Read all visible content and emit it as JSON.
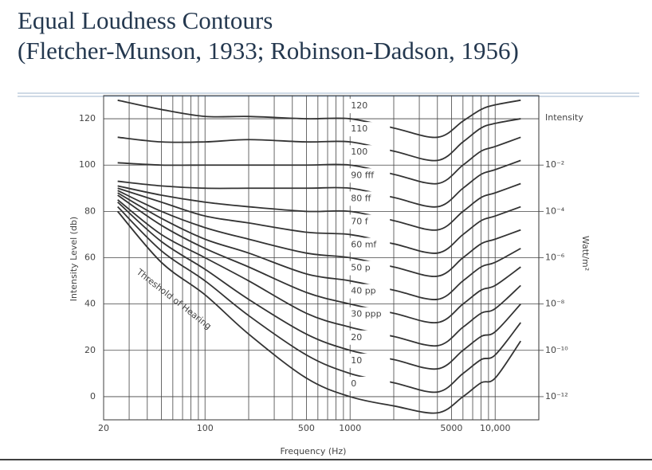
{
  "header": {
    "title_line1": "Equal Loudness Contours",
    "title_line2": "(Fletcher-Munson, 1933; Robinson-Dadson, 1956)"
  },
  "chart_data": {
    "type": "line",
    "x_label": "Frequency (Hz)",
    "y_label": "Intensity Level (db)",
    "y2_title": "Intensity",
    "y2_label": "Watt/m²",
    "annotation": "Threshold of Hearing",
    "x": [
      25,
      50,
      100,
      200,
      500,
      1000,
      2000,
      4000,
      6000,
      8000,
      10000,
      15000
    ],
    "xlim": [
      20,
      20000
    ],
    "xscale": "log",
    "xticks": [
      20,
      100,
      500,
      1000,
      5000,
      {
        "value": 10000,
        "label": "10,000"
      }
    ],
    "xminor": [
      30,
      40,
      50,
      60,
      70,
      80,
      90,
      200,
      300,
      400,
      600,
      700,
      800,
      900,
      2000,
      3000,
      4000,
      6000,
      7000,
      8000,
      9000
    ],
    "ylim": [
      -10,
      130
    ],
    "yticks": [
      0,
      20,
      40,
      60,
      80,
      100,
      120
    ],
    "grid": true,
    "y2lim": [
      1e-13,
      10
    ],
    "y2scale": "log",
    "y2ticks": [
      {
        "value": 0.01,
        "label": "10⁻²"
      },
      {
        "value": 0.0001,
        "label": "10⁻⁴"
      },
      {
        "value": 1e-06,
        "label": "10⁻⁶"
      },
      {
        "value": 1e-08,
        "label": "10⁻⁸"
      },
      {
        "value": 1e-10,
        "label": "10⁻¹⁰"
      },
      {
        "value": 1e-12,
        "label": "10⁻¹²"
      }
    ],
    "series": [
      {
        "name": "120",
        "color": "#333333",
        "values": [
          128,
          124,
          121,
          121,
          120,
          120,
          116,
          112,
          119,
          124,
          126,
          128
        ]
      },
      {
        "name": "110",
        "color": "#333333",
        "values": [
          112,
          110,
          110,
          111,
          110,
          110,
          106,
          102,
          110,
          116,
          118,
          120
        ]
      },
      {
        "name": "100",
        "color": "#333333",
        "values": [
          101,
          100,
          100,
          100,
          100,
          100,
          96,
          92,
          100,
          106,
          108,
          112
        ]
      },
      {
        "name": "90 fff",
        "color": "#333333",
        "values": [
          93,
          91,
          90,
          90,
          90,
          90,
          86,
          82,
          90,
          96,
          98,
          102
        ]
      },
      {
        "name": "80 ff",
        "color": "#333333",
        "values": [
          91,
          87,
          84,
          82,
          80,
          80,
          76,
          72,
          80,
          86,
          88,
          92
        ]
      },
      {
        "name": "70 f",
        "color": "#333333",
        "values": [
          90,
          84,
          78,
          75,
          71,
          70,
          66,
          62,
          70,
          76,
          78,
          82
        ]
      },
      {
        "name": "60 mf",
        "color": "#333333",
        "values": [
          89,
          80,
          73,
          68,
          62,
          60,
          56,
          52,
          60,
          66,
          68,
          72
        ]
      },
      {
        "name": "50 p",
        "color": "#333333",
        "values": [
          88,
          77,
          68,
          62,
          53,
          50,
          46,
          42,
          50,
          56,
          58,
          64
        ]
      },
      {
        "name": "40 pp",
        "color": "#333333",
        "values": [
          87,
          74,
          64,
          56,
          45,
          40,
          36,
          32,
          40,
          46,
          48,
          56
        ]
      },
      {
        "name": "30 ppp",
        "color": "#333333",
        "values": [
          85,
          70,
          60,
          50,
          36,
          30,
          26,
          22,
          30,
          36,
          38,
          48
        ]
      },
      {
        "name": "20",
        "color": "#333333",
        "values": [
          84,
          67,
          55,
          42,
          27,
          20,
          16,
          12,
          20,
          26,
          28,
          40
        ]
      },
      {
        "name": "10",
        "color": "#333333",
        "values": [
          82,
          63,
          50,
          35,
          18,
          10,
          6,
          2,
          10,
          16,
          18,
          32
        ]
      },
      {
        "name": "0",
        "color": "#333333",
        "values": [
          80,
          58,
          44,
          27,
          8,
          0,
          -4,
          -7,
          0,
          6,
          8,
          24
        ]
      }
    ]
  }
}
